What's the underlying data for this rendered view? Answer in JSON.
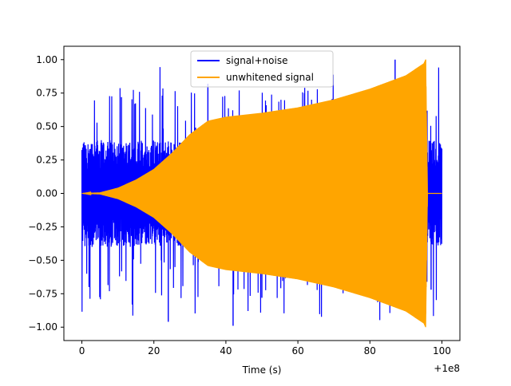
{
  "chart_data": {
    "type": "line",
    "title": "",
    "xlabel": "Time (s)",
    "ylabel": "",
    "x_offset_label": "+1e8",
    "xlim": [
      -5,
      105
    ],
    "ylim": [
      -1.1,
      1.1
    ],
    "x_ticks": [
      0,
      20,
      40,
      60,
      80,
      100
    ],
    "y_ticks": [
      -1.0,
      -0.75,
      -0.5,
      -0.25,
      0.0,
      0.25,
      0.5,
      0.75,
      1.0
    ],
    "x_tick_labels": [
      "0",
      "20",
      "40",
      "60",
      "80",
      "100"
    ],
    "y_tick_labels": [
      "−1.00",
      "−0.75",
      "−0.50",
      "−0.25",
      "0.00",
      "0.25",
      "0.50",
      "0.75",
      "1.00"
    ],
    "grid": false,
    "legend_position": "top-center",
    "series": [
      {
        "name": "signal+noise",
        "color": "#0000ff",
        "x_range": [
          0,
          100
        ],
        "max_amplitude": 1.0,
        "min_value": -0.96,
        "typical_envelope": 0.4
      },
      {
        "name": "unwhitened signal",
        "color": "#ffa500",
        "x_range": [
          0,
          100
        ],
        "envelope": [
          {
            "x": 0,
            "amp": 0.0
          },
          {
            "x": 5,
            "amp": 0.005
          },
          {
            "x": 10,
            "amp": 0.04
          },
          {
            "x": 15,
            "amp": 0.1
          },
          {
            "x": 20,
            "amp": 0.18
          },
          {
            "x": 25,
            "amp": 0.3
          },
          {
            "x": 30,
            "amp": 0.44
          },
          {
            "x": 35,
            "amp": 0.54
          },
          {
            "x": 40,
            "amp": 0.57
          },
          {
            "x": 50,
            "amp": 0.6
          },
          {
            "x": 60,
            "amp": 0.64
          },
          {
            "x": 70,
            "amp": 0.7
          },
          {
            "x": 80,
            "amp": 0.78
          },
          {
            "x": 90,
            "amp": 0.88
          },
          {
            "x": 95,
            "amp": 0.97
          },
          {
            "x": 95.5,
            "amp": 1.0
          },
          {
            "x": 96,
            "amp": 0.0
          },
          {
            "x": 100,
            "amp": 0.0
          }
        ]
      }
    ]
  }
}
